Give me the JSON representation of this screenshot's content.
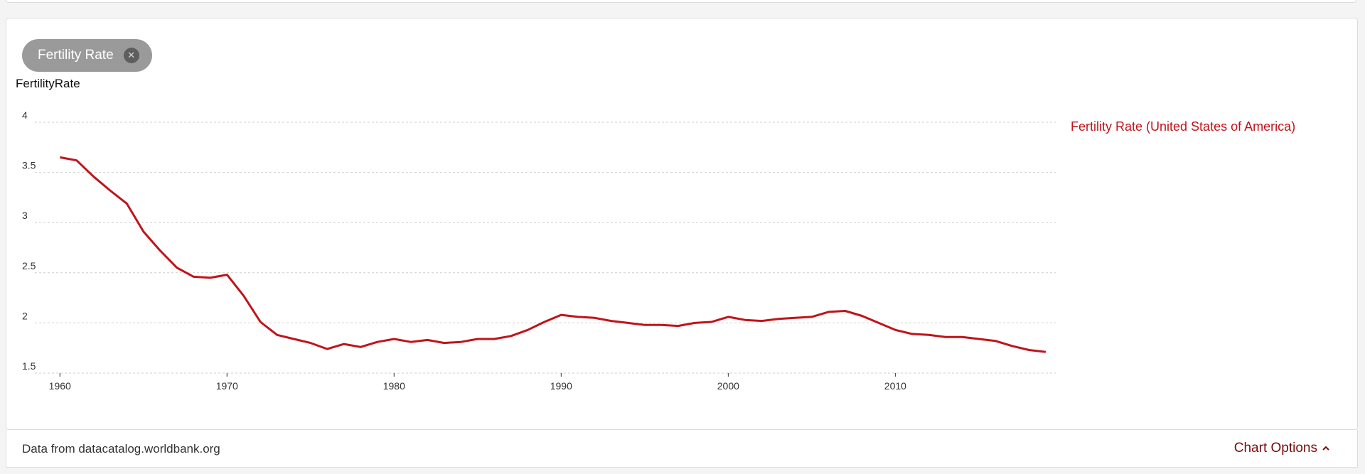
{
  "filter_chip": {
    "label": "Fertility Rate",
    "close_glyph": "✕"
  },
  "footer": {
    "source_text": "Data from datacatalog.worldbank.org",
    "options_label": "Chart Options"
  },
  "colors": {
    "series": "#c0141a",
    "grid": "#cfcfcf",
    "chip": "#9a9a9a",
    "options": "#7a0b0b"
  },
  "chart_data": {
    "type": "line",
    "title": "",
    "xlabel": "",
    "ylabel": "FertilityRate",
    "xlim": [
      1958.5,
      2019.6
    ],
    "ylim": [
      1.5,
      4
    ],
    "yticks": [
      1.5,
      2,
      2.5,
      3,
      3.5,
      4
    ],
    "ytick_labels": [
      "1.5",
      "2",
      "2.5",
      "3",
      "3.5",
      "4"
    ],
    "xticks": [
      1960,
      1970,
      1980,
      1990,
      2000,
      2010
    ],
    "grid": "horizontal-dashed",
    "legend_position": "right",
    "series": [
      {
        "name": "Fertility Rate (United States of America)",
        "color": "#c0141a",
        "x": [
          1960,
          1961,
          1962,
          1963,
          1964,
          1965,
          1966,
          1967,
          1968,
          1969,
          1970,
          1971,
          1972,
          1973,
          1974,
          1975,
          1976,
          1977,
          1978,
          1979,
          1980,
          1981,
          1982,
          1983,
          1984,
          1985,
          1986,
          1987,
          1988,
          1989,
          1990,
          1991,
          1992,
          1993,
          1994,
          1995,
          1996,
          1997,
          1998,
          1999,
          2000,
          2001,
          2002,
          2003,
          2004,
          2005,
          2006,
          2007,
          2008,
          2009,
          2010,
          2011,
          2012,
          2013,
          2014,
          2015,
          2016,
          2017,
          2018,
          2019
        ],
        "y": [
          3.65,
          3.62,
          3.46,
          3.32,
          3.19,
          2.91,
          2.72,
          2.55,
          2.46,
          2.45,
          2.48,
          2.27,
          2.01,
          1.88,
          1.84,
          1.8,
          1.74,
          1.79,
          1.76,
          1.81,
          1.84,
          1.81,
          1.83,
          1.8,
          1.81,
          1.84,
          1.84,
          1.87,
          1.93,
          2.01,
          2.08,
          2.06,
          2.05,
          2.02,
          2.0,
          1.98,
          1.98,
          1.97,
          2.0,
          2.01,
          2.06,
          2.03,
          2.02,
          2.04,
          2.05,
          2.06,
          2.11,
          2.12,
          2.07,
          2.0,
          1.93,
          1.89,
          1.88,
          1.86,
          1.86,
          1.84,
          1.82,
          1.77,
          1.73,
          1.71
        ]
      }
    ]
  }
}
